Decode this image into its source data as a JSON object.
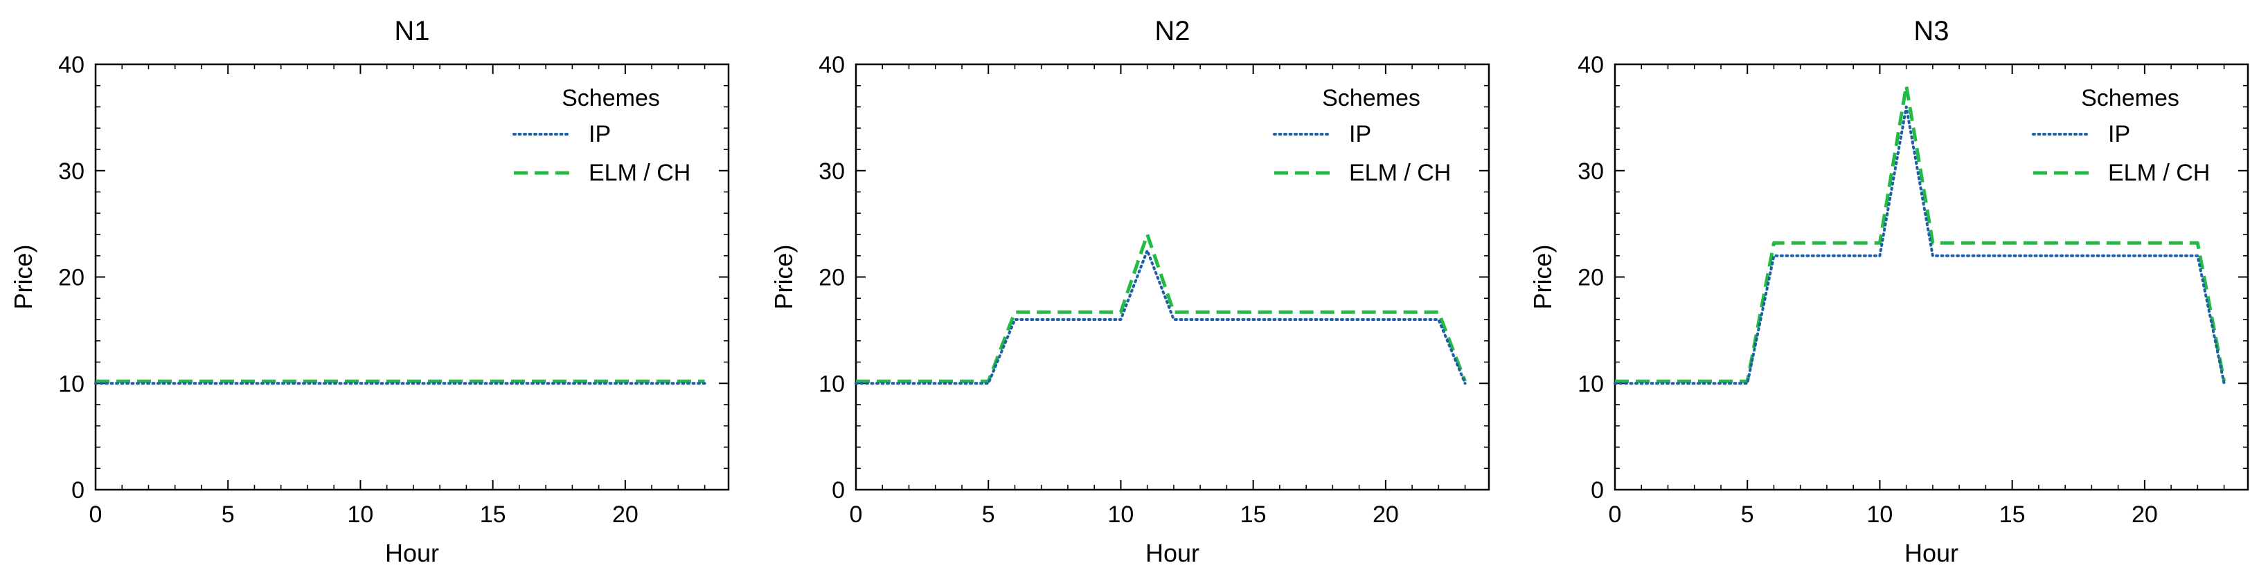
{
  "chart_data": [
    {
      "type": "line",
      "title": "N1",
      "xlabel": "Hour",
      "ylabel": "Price)",
      "xlim": [
        0,
        23.9
      ],
      "ylim": [
        0,
        40
      ],
      "xticks": [
        0,
        5,
        10,
        15,
        20
      ],
      "yticks": [
        0,
        10,
        20,
        30,
        40
      ],
      "legend": {
        "title": "Schemes",
        "position": "top-right"
      },
      "x": [
        0,
        1,
        2,
        3,
        4,
        5,
        6,
        7,
        8,
        9,
        10,
        11,
        12,
        13,
        14,
        15,
        16,
        17,
        18,
        19,
        20,
        21,
        22,
        23
      ],
      "series": [
        {
          "name": "IP",
          "color": "#1f5fa8",
          "style": "dotted",
          "values": [
            10,
            10,
            10,
            10,
            10,
            10,
            10,
            10,
            10,
            10,
            10,
            10,
            10,
            10,
            10,
            10,
            10,
            10,
            10,
            10,
            10,
            10,
            10,
            10
          ]
        },
        {
          "name": "ELM / CH",
          "color": "#22bb44",
          "style": "dashed",
          "values": [
            10.2,
            10.2,
            10.2,
            10.2,
            10.2,
            10.2,
            10.2,
            10.2,
            10.2,
            10.2,
            10.2,
            10.2,
            10.2,
            10.2,
            10.2,
            10.2,
            10.2,
            10.2,
            10.2,
            10.2,
            10.2,
            10.2,
            10.2,
            10.2
          ]
        }
      ]
    },
    {
      "type": "line",
      "title": "N2",
      "xlabel": "Hour",
      "ylabel": "Price)",
      "xlim": [
        0,
        23.9
      ],
      "ylim": [
        0,
        40
      ],
      "xticks": [
        0,
        5,
        10,
        15,
        20
      ],
      "yticks": [
        0,
        10,
        20,
        30,
        40
      ],
      "legend": {
        "title": "Schemes",
        "position": "top-right"
      },
      "x": [
        0,
        1,
        2,
        3,
        4,
        5,
        6,
        7,
        8,
        9,
        10,
        11,
        12,
        13,
        14,
        15,
        16,
        17,
        18,
        19,
        20,
        21,
        22,
        23
      ],
      "series": [
        {
          "name": "IP",
          "color": "#1f5fa8",
          "style": "dotted",
          "values": [
            10,
            10,
            10,
            10,
            10,
            10,
            16,
            16,
            16,
            16,
            16,
            22.5,
            16,
            16,
            16,
            16,
            16,
            16,
            16,
            16,
            16,
            16,
            16,
            10
          ]
        },
        {
          "name": "ELM / CH",
          "color": "#22bb44",
          "style": "dashed",
          "values": [
            10.2,
            10.2,
            10.2,
            10.2,
            10.2,
            10.2,
            16.7,
            16.7,
            16.7,
            16.7,
            16.7,
            24,
            16.7,
            16.7,
            16.7,
            16.7,
            16.7,
            16.7,
            16.7,
            16.7,
            16.7,
            16.7,
            16.7,
            10.2
          ]
        }
      ]
    },
    {
      "type": "line",
      "title": "N3",
      "xlabel": "Hour",
      "ylabel": "Price)",
      "xlim": [
        0,
        23.9
      ],
      "ylim": [
        0,
        40
      ],
      "xticks": [
        0,
        5,
        10,
        15,
        20
      ],
      "yticks": [
        0,
        10,
        20,
        30,
        40
      ],
      "legend": {
        "title": "Schemes",
        "position": "top-right"
      },
      "x": [
        0,
        1,
        2,
        3,
        4,
        5,
        6,
        7,
        8,
        9,
        10,
        11,
        12,
        13,
        14,
        15,
        16,
        17,
        18,
        19,
        20,
        21,
        22,
        23
      ],
      "series": [
        {
          "name": "IP",
          "color": "#1f5fa8",
          "style": "dotted",
          "values": [
            10,
            10,
            10,
            10,
            10,
            10,
            22,
            22,
            22,
            22,
            22,
            36,
            22,
            22,
            22,
            22,
            22,
            22,
            22,
            22,
            22,
            22,
            22,
            10
          ]
        },
        {
          "name": "ELM / CH",
          "color": "#22bb44",
          "style": "dashed",
          "values": [
            10.2,
            10.2,
            10.2,
            10.2,
            10.2,
            10.2,
            23.2,
            23.2,
            23.2,
            23.2,
            23.2,
            38,
            23.2,
            23.2,
            23.2,
            23.2,
            23.2,
            23.2,
            23.2,
            23.2,
            23.2,
            23.2,
            23.2,
            10.2
          ]
        }
      ]
    }
  ]
}
